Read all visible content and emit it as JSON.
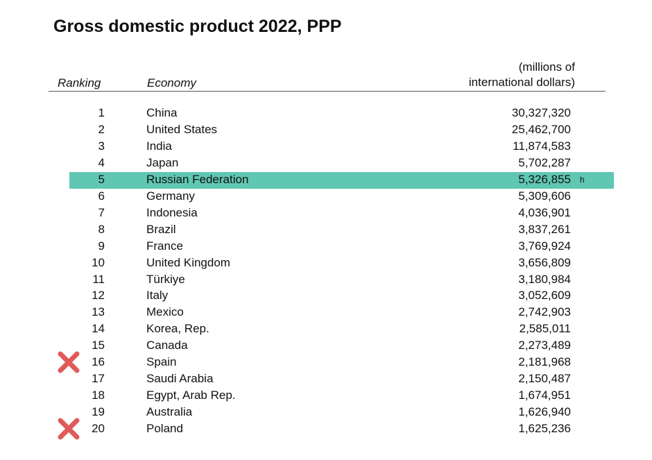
{
  "title": "Gross domestic product 2022, PPP",
  "header": {
    "ranking": "Ranking",
    "economy": "Economy",
    "unit_lines": [
      "(millions of",
      "international dollars)"
    ]
  },
  "rows": [
    {
      "rank": "1",
      "economy": "China",
      "gdp": "30,327,320"
    },
    {
      "rank": "2",
      "economy": "United States",
      "gdp": "25,462,700"
    },
    {
      "rank": "3",
      "economy": "India",
      "gdp": "11,874,583"
    },
    {
      "rank": "4",
      "economy": "Japan",
      "gdp": "5,702,287"
    },
    {
      "rank": "5",
      "economy": "Russian Federation",
      "gdp": "5,326,855",
      "note": "h"
    },
    {
      "rank": "6",
      "economy": "Germany",
      "gdp": "5,309,606"
    },
    {
      "rank": "7",
      "economy": "Indonesia",
      "gdp": "4,036,901"
    },
    {
      "rank": "8",
      "economy": "Brazil",
      "gdp": "3,837,261"
    },
    {
      "rank": "9",
      "economy": "France",
      "gdp": "3,769,924"
    },
    {
      "rank": "10",
      "economy": "United Kingdom",
      "gdp": "3,656,809"
    },
    {
      "rank": "11",
      "economy": "Türkiye",
      "gdp": "3,180,984"
    },
    {
      "rank": "12",
      "economy": "Italy",
      "gdp": "3,052,609"
    },
    {
      "rank": "13",
      "economy": "Mexico",
      "gdp": "2,742,903"
    },
    {
      "rank": "14",
      "economy": "Korea, Rep.",
      "gdp": "2,585,011"
    },
    {
      "rank": "15",
      "economy": "Canada",
      "gdp": "2,273,489"
    },
    {
      "rank": "16",
      "economy": "Spain",
      "gdp": "2,181,968"
    },
    {
      "rank": "17",
      "economy": "Saudi Arabia",
      "gdp": "2,150,487"
    },
    {
      "rank": "18",
      "economy": "Egypt, Arab Rep.",
      "gdp": "1,674,951"
    },
    {
      "rank": "19",
      "economy": "Australia",
      "gdp": "1,626,940"
    },
    {
      "rank": "20",
      "economy": "Poland",
      "gdp": "1,625,236"
    }
  ]
}
